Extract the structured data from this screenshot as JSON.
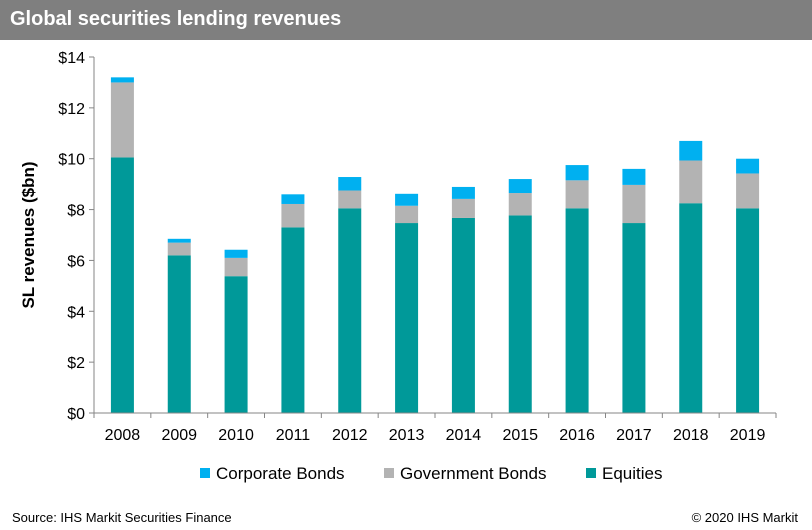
{
  "title": "Global securities lending revenues",
  "footer": {
    "source": "Source: IHS Markit Securities Finance",
    "copyright": "© 2020 IHS Markit"
  },
  "chart_data": {
    "type": "bar",
    "stacked": true,
    "ylabel": "SL revenues ($bn)",
    "xlabel": "",
    "ylim": [
      0,
      14
    ],
    "y_ticks": [
      "$0",
      "$2",
      "$4",
      "$6",
      "$8",
      "$10",
      "$12",
      "$14"
    ],
    "categories": [
      "2008",
      "2009",
      "2010",
      "2011",
      "2012",
      "2013",
      "2014",
      "2015",
      "2016",
      "2017",
      "2018",
      "2019"
    ],
    "series": [
      {
        "name": "Equities",
        "color": "#009999",
        "values": [
          10.05,
          6.2,
          5.38,
          7.3,
          8.05,
          7.47,
          7.67,
          7.77,
          8.05,
          7.47,
          8.25,
          8.05
        ]
      },
      {
        "name": "Government Bonds",
        "color": "#b3b3b3",
        "values": [
          2.95,
          0.5,
          0.72,
          0.92,
          0.7,
          0.68,
          0.75,
          0.88,
          1.1,
          1.5,
          1.68,
          1.37
        ]
      },
      {
        "name": "Corporate Bonds",
        "color": "#00b0f0",
        "values": [
          0.2,
          0.15,
          0.32,
          0.38,
          0.53,
          0.47,
          0.47,
          0.55,
          0.6,
          0.63,
          0.77,
          0.58
        ]
      }
    ],
    "legend_order": [
      "Corporate Bonds",
      "Government Bonds",
      "Equities"
    ],
    "legend_position": "bottom",
    "grid": false
  }
}
